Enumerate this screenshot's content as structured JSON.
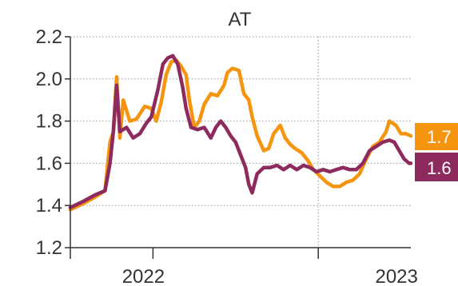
{
  "chart_data": {
    "type": "line",
    "title": "AT",
    "xlabel": "",
    "ylabel": "",
    "ylim": [
      1.2,
      2.2
    ],
    "yticks": [
      "1.2",
      "1.4",
      "1.6",
      "1.8",
      "2.0",
      "2.2"
    ],
    "xticks": [
      {
        "label": "2022",
        "x": 2022.5
      },
      {
        "label": "2023",
        "x": 2023.5
      }
    ],
    "xlim": [
      2021.5,
      2024.0
    ],
    "grid": true,
    "series": [
      {
        "color": "#F5950F",
        "end_label": "1.7",
        "points": [
          [
            2021.5,
            1.38
          ],
          [
            2021.58,
            1.41
          ],
          [
            2021.65,
            1.44
          ],
          [
            2021.71,
            1.47
          ],
          [
            2021.74,
            1.7
          ],
          [
            2021.76,
            1.75
          ],
          [
            2021.78,
            2.01
          ],
          [
            2021.8,
            1.72
          ],
          [
            2021.82,
            1.9
          ],
          [
            2021.86,
            1.8
          ],
          [
            2021.9,
            1.81
          ],
          [
            2021.95,
            1.87
          ],
          [
            2021.99,
            1.86
          ],
          [
            2022.02,
            1.8
          ],
          [
            2022.05,
            1.89
          ],
          [
            2022.08,
            2.02
          ],
          [
            2022.11,
            2.08
          ],
          [
            2022.14,
            2.09
          ],
          [
            2022.17,
            2.06
          ],
          [
            2022.2,
            2.02
          ],
          [
            2022.22,
            1.9
          ],
          [
            2022.25,
            1.77
          ],
          [
            2022.28,
            1.8
          ],
          [
            2022.31,
            1.88
          ],
          [
            2022.35,
            1.93
          ],
          [
            2022.39,
            1.92
          ],
          [
            2022.43,
            1.97
          ],
          [
            2022.45,
            2.03
          ],
          [
            2022.48,
            2.05
          ],
          [
            2022.52,
            2.04
          ],
          [
            2022.55,
            1.93
          ],
          [
            2022.58,
            1.9
          ],
          [
            2022.6,
            1.82
          ],
          [
            2022.63,
            1.73
          ],
          [
            2022.67,
            1.66
          ],
          [
            2022.7,
            1.67
          ],
          [
            2022.73,
            1.74
          ],
          [
            2022.77,
            1.78
          ],
          [
            2022.8,
            1.72
          ],
          [
            2022.83,
            1.69
          ],
          [
            2022.86,
            1.67
          ],
          [
            2022.9,
            1.65
          ],
          [
            2022.94,
            1.61
          ],
          [
            2022.97,
            1.57
          ],
          [
            2023.01,
            1.54
          ],
          [
            2023.05,
            1.51
          ],
          [
            2023.09,
            1.49
          ],
          [
            2023.13,
            1.49
          ],
          [
            2023.17,
            1.51
          ],
          [
            2023.21,
            1.52
          ],
          [
            2023.25,
            1.55
          ],
          [
            2023.29,
            1.62
          ],
          [
            2023.33,
            1.68
          ],
          [
            2023.37,
            1.7
          ],
          [
            2023.41,
            1.75
          ],
          [
            2023.43,
            1.8
          ],
          [
            2023.47,
            1.78
          ],
          [
            2023.5,
            1.74
          ],
          [
            2023.53,
            1.74
          ],
          [
            2023.56,
            1.73
          ]
        ]
      },
      {
        "color": "#8E2B5E",
        "end_label": "1.6",
        "points": [
          [
            2021.5,
            1.39
          ],
          [
            2021.58,
            1.42
          ],
          [
            2021.65,
            1.45
          ],
          [
            2021.71,
            1.47
          ],
          [
            2021.74,
            1.6
          ],
          [
            2021.76,
            1.75
          ],
          [
            2021.78,
            1.97
          ],
          [
            2021.8,
            1.75
          ],
          [
            2021.84,
            1.77
          ],
          [
            2021.88,
            1.72
          ],
          [
            2021.92,
            1.74
          ],
          [
            2021.96,
            1.79
          ],
          [
            2021.99,
            1.82
          ],
          [
            2022.03,
            1.95
          ],
          [
            2022.06,
            2.07
          ],
          [
            2022.09,
            2.1
          ],
          [
            2022.12,
            2.11
          ],
          [
            2022.15,
            2.07
          ],
          [
            2022.18,
            1.96
          ],
          [
            2022.2,
            1.86
          ],
          [
            2022.23,
            1.77
          ],
          [
            2022.27,
            1.76
          ],
          [
            2022.31,
            1.77
          ],
          [
            2022.35,
            1.72
          ],
          [
            2022.38,
            1.77
          ],
          [
            2022.41,
            1.8
          ],
          [
            2022.44,
            1.77
          ],
          [
            2022.47,
            1.73
          ],
          [
            2022.5,
            1.7
          ],
          [
            2022.53,
            1.64
          ],
          [
            2022.56,
            1.58
          ],
          [
            2022.58,
            1.5
          ],
          [
            2022.6,
            1.46
          ],
          [
            2022.63,
            1.55
          ],
          [
            2022.67,
            1.58
          ],
          [
            2022.71,
            1.58
          ],
          [
            2022.75,
            1.59
          ],
          [
            2022.79,
            1.57
          ],
          [
            2022.83,
            1.59
          ],
          [
            2022.87,
            1.57
          ],
          [
            2022.91,
            1.59
          ],
          [
            2022.95,
            1.58
          ],
          [
            2022.99,
            1.56
          ],
          [
            2023.03,
            1.57
          ],
          [
            2023.07,
            1.56
          ],
          [
            2023.11,
            1.57
          ],
          [
            2023.15,
            1.58
          ],
          [
            2023.19,
            1.57
          ],
          [
            2023.23,
            1.57
          ],
          [
            2023.27,
            1.6
          ],
          [
            2023.31,
            1.66
          ],
          [
            2023.35,
            1.68
          ],
          [
            2023.39,
            1.7
          ],
          [
            2023.43,
            1.71
          ],
          [
            2023.46,
            1.7
          ],
          [
            2023.49,
            1.66
          ],
          [
            2023.52,
            1.62
          ],
          [
            2023.55,
            1.6
          ],
          [
            2023.56,
            1.6
          ]
        ]
      }
    ]
  }
}
